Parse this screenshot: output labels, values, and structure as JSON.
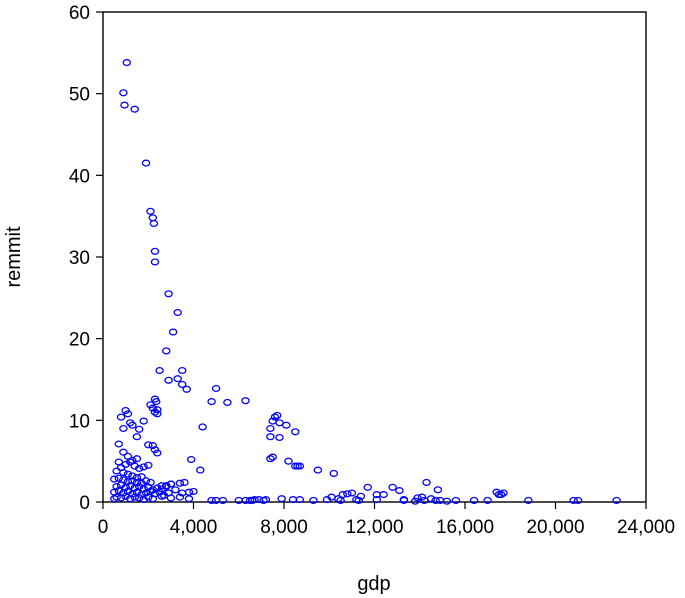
{
  "chart_data": {
    "type": "scatter",
    "xlabel": "gdp",
    "ylabel": "remmit",
    "xlim": [
      0,
      24000
    ],
    "ylim": [
      0,
      60
    ],
    "x_ticks": [
      0,
      4000,
      8000,
      12000,
      16000,
      20000,
      24000
    ],
    "x_tick_labels": [
      "0",
      "4,000",
      "8,000",
      "12,000",
      "16,000",
      "20,000",
      "24,000"
    ],
    "y_ticks": [
      0,
      10,
      20,
      30,
      40,
      50,
      60
    ],
    "y_tick_labels": [
      "0",
      "10",
      "20",
      "30",
      "40",
      "50",
      "60"
    ],
    "grid": false,
    "marker": "hollow-circle",
    "marker_color": "#0000ff",
    "series": [
      {
        "x": [
          1050,
          900,
          950,
          1400,
          1900,
          2100,
          2200,
          2250,
          2300,
          2300,
          2900,
          3100,
          3300,
          2800,
          2500,
          2900,
          3500,
          3500,
          3700,
          3300,
          2100,
          2200,
          2400,
          2300,
          2400,
          2350,
          2300,
          1000,
          800,
          1100,
          900,
          1300,
          1200,
          1500,
          1800,
          1600,
          2000,
          2200,
          2300,
          2400,
          700,
          900,
          1100,
          1300,
          1500,
          700,
          600,
          800,
          1000,
          1200,
          1400,
          1600,
          1800,
          2000,
          900,
          1100,
          1300,
          1500,
          1700,
          500,
          700,
          900,
          1100,
          1300,
          1500,
          1700,
          1900,
          2100,
          600,
          800,
          1000,
          1200,
          1400,
          1600,
          1800,
          2000,
          2200,
          2400,
          2600,
          2800,
          3000,
          500,
          700,
          900,
          1100,
          1300,
          1500,
          1700,
          1900,
          2100,
          2300,
          2500,
          2700,
          2900,
          500,
          600,
          800,
          1000,
          1200,
          1400,
          1600,
          1800,
          2000,
          2200,
          2600,
          3000,
          3400,
          3800,
          4000,
          3800,
          3500,
          3200,
          3000,
          2800,
          2600,
          3400,
          3600,
          3900,
          4300,
          4400,
          4800,
          5000,
          5500,
          6300,
          5000,
          7400,
          7500,
          7600,
          7700,
          7800,
          7400,
          7500,
          7400,
          7800,
          8100,
          8200,
          8500,
          8600,
          8700,
          8500,
          9500,
          10200,
          7900,
          4800,
          5300,
          6000,
          6300,
          6600,
          6900,
          7200,
          7100,
          6700,
          6500,
          8400,
          8700,
          9300,
          9900,
          10100,
          10500,
          10800,
          11000,
          11200,
          11300,
          11700,
          12100,
          12100,
          10600,
          10400,
          11400,
          12400,
          12800,
          13100,
          13300,
          13900,
          14100,
          14300,
          14500,
          14800,
          14900,
          13300,
          13800,
          14200,
          14700,
          15200,
          15600,
          16400,
          17000,
          17400,
          17500,
          17600,
          17700,
          18800,
          20800,
          21000,
          22700
        ],
        "y": [
          53.8,
          50.1,
          48.6,
          48.1,
          41.5,
          35.6,
          34.8,
          34.1,
          30.7,
          29.4,
          25.5,
          20.8,
          23.2,
          18.5,
          16.1,
          14.9,
          16.1,
          14.4,
          13.8,
          15.1,
          11.9,
          11.5,
          11.3,
          11.0,
          10.8,
          12.3,
          12.6,
          11.2,
          10.4,
          10.8,
          9.0,
          9.4,
          9.7,
          8.0,
          9.9,
          8.9,
          7.0,
          6.9,
          6.4,
          6.0,
          7.1,
          6.1,
          5.6,
          5.1,
          5.3,
          4.9,
          3.8,
          4.2,
          4.6,
          4.9,
          4.4,
          4.1,
          4.3,
          4.5,
          3.6,
          3.4,
          3.2,
          3.0,
          3.1,
          2.8,
          2.9,
          2.7,
          2.5,
          2.6,
          2.4,
          2.3,
          2.6,
          2.4,
          1.9,
          2.1,
          1.8,
          2.0,
          1.7,
          1.9,
          1.6,
          1.8,
          1.5,
          1.7,
          2.0,
          1.9,
          2.2,
          1.2,
          1.4,
          1.1,
          1.3,
          1.0,
          1.2,
          0.9,
          1.1,
          1.3,
          1.0,
          1.2,
          0.8,
          1.1,
          0.4,
          0.6,
          0.5,
          0.7,
          0.4,
          0.6,
          0.5,
          0.3,
          0.6,
          0.4,
          0.7,
          0.5,
          0.6,
          0.4,
          1.3,
          1.2,
          1.1,
          1.5,
          2.2,
          2.0,
          1.6,
          2.3,
          2.4,
          5.2,
          3.9,
          9.2,
          12.3,
          13.9,
          12.2,
          12.4,
          0.2,
          9.0,
          9.9,
          10.4,
          10.6,
          9.7,
          8.0,
          5.5,
          5.3,
          7.9,
          9.4,
          5.0,
          8.6,
          4.4,
          4.4,
          4.4,
          3.9,
          3.5,
          0.4,
          0.2,
          0.2,
          0.2,
          0.2,
          0.2,
          0.3,
          0.3,
          0.2,
          0.3,
          0.2,
          0.3,
          0.3,
          0.2,
          0.3,
          0.6,
          0.2,
          1.0,
          1.1,
          0.3,
          0.2,
          1.8,
          0.3,
          0.9,
          0.9,
          0.4,
          0.7,
          0.9,
          1.8,
          1.4,
          0.3,
          0.5,
          0.6,
          2.4,
          0.4,
          1.5,
          0.2,
          0.2,
          0.1,
          0.2,
          0.2,
          0.1,
          0.2,
          0.2,
          0.2,
          1.2,
          0.9,
          0.9,
          1.1,
          0.2,
          0.2,
          0.2,
          0.2
        ]
      }
    ]
  }
}
